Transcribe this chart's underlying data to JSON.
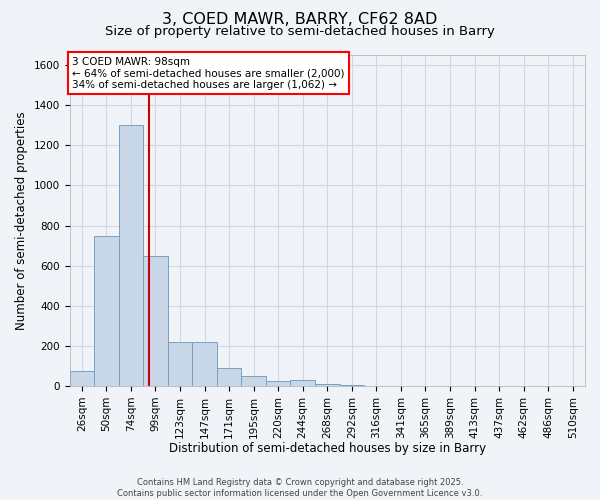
{
  "title": "3, COED MAWR, BARRY, CF62 8AD",
  "subtitle": "Size of property relative to semi-detached houses in Barry",
  "xlabel": "Distribution of semi-detached houses by size in Barry",
  "ylabel": "Number of semi-detached properties",
  "bar_color": "#c8d8e8",
  "bar_edge_color": "#7aa0c0",
  "grid_color": "#d0d8e8",
  "background_color": "#f0f4f8",
  "categories": [
    "26sqm",
    "50sqm",
    "74sqm",
    "99sqm",
    "123sqm",
    "147sqm",
    "171sqm",
    "195sqm",
    "220sqm",
    "244sqm",
    "268sqm",
    "292sqm",
    "316sqm",
    "341sqm",
    "365sqm",
    "389sqm",
    "413sqm",
    "437sqm",
    "462sqm",
    "486sqm",
    "510sqm"
  ],
  "values": [
    75,
    750,
    1300,
    650,
    220,
    220,
    90,
    50,
    25,
    30,
    10,
    5,
    2,
    1,
    0,
    0,
    0,
    0,
    0,
    0,
    0
  ],
  "ylim": [
    0,
    1650
  ],
  "yticks": [
    0,
    200,
    400,
    600,
    800,
    1000,
    1200,
    1400,
    1600
  ],
  "vline_position": 2.72,
  "vline_color": "#cc0000",
  "annotation_line1": "3 COED MAWR: 98sqm",
  "annotation_line2": "← 64% of semi-detached houses are smaller (2,000)",
  "annotation_line3": "34% of semi-detached houses are larger (1,062) →",
  "footnote": "Contains HM Land Registry data © Crown copyright and database right 2025.\nContains public sector information licensed under the Open Government Licence v3.0.",
  "title_fontsize": 11.5,
  "subtitle_fontsize": 9.5,
  "label_fontsize": 8.5,
  "tick_fontsize": 7.5,
  "annot_fontsize": 7.5,
  "footnote_fontsize": 6.0
}
